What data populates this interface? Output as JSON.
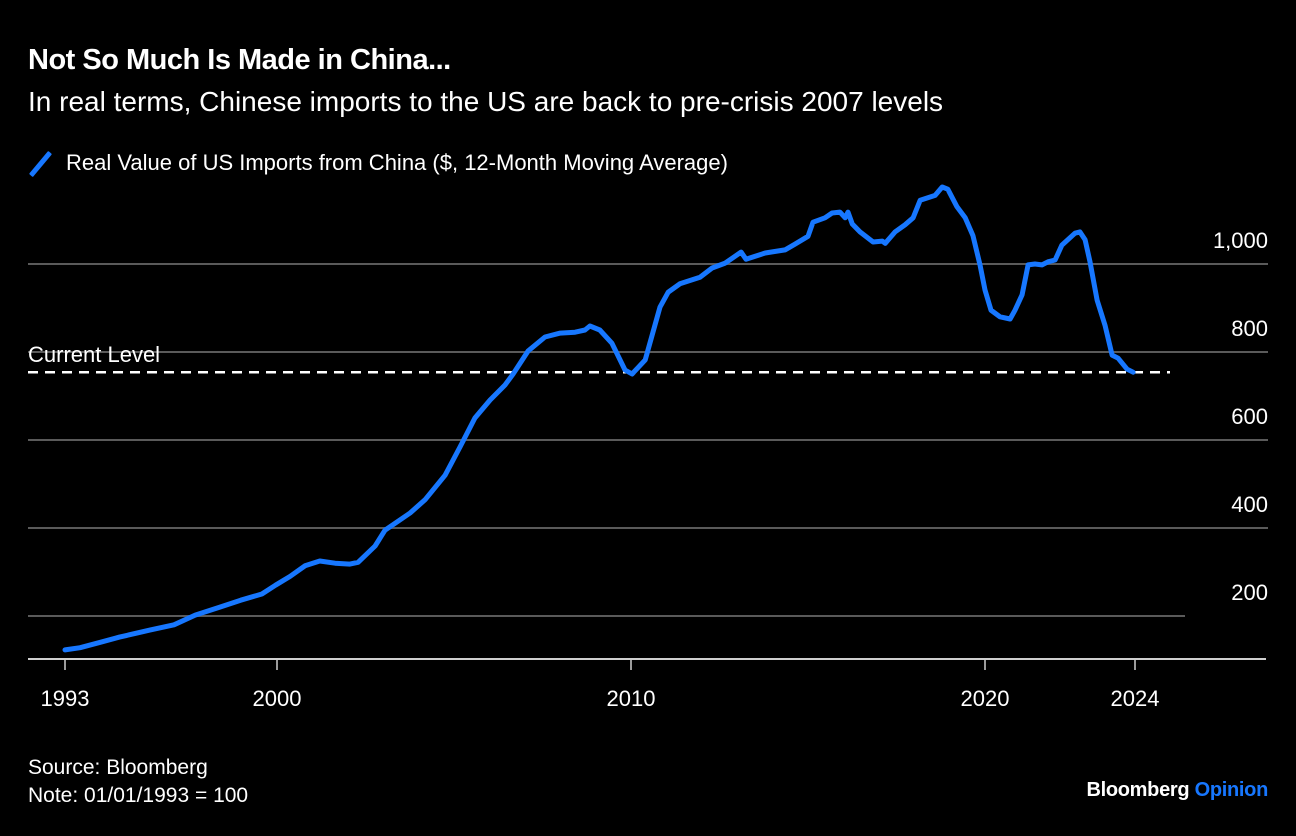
{
  "header": {
    "title": "Not So Much Is Made in China...",
    "subtitle": "In real terms, Chinese imports to the US are back to pre-crisis 2007 levels"
  },
  "legend": {
    "label": "Real Value of US Imports from China ($, 12-Month Moving Average)",
    "color": "#1777ff"
  },
  "footer": {
    "source": "Source: Bloomberg",
    "note": "Note: 01/01/1993 = 100"
  },
  "branding": {
    "name": "Bloomberg",
    "product": "Opinion",
    "product_color": "#1777ff"
  },
  "chart_data": {
    "type": "line",
    "title": "Not So Much Is Made in China...",
    "subtitle": "In real terms, Chinese imports to the US are back to pre-crisis 2007 levels",
    "xlabel": "",
    "ylabel": "",
    "x_ticks": [
      "1993",
      "2000",
      "2010",
      "2020",
      "2024"
    ],
    "y_ticks": [
      "200",
      "400",
      "600",
      "800",
      "1,000"
    ],
    "y_tick_values": [
      200,
      400,
      600,
      800,
      1000
    ],
    "ylim": [
      100,
      1200
    ],
    "grid": true,
    "y_axis_side": "right",
    "legend_position": "top-left",
    "annotation": {
      "label": "Current Level",
      "value": 754,
      "style": "dashed"
    },
    "series": [
      {
        "name": "Real Value of US Imports from China ($, 12-Month Moving Average)",
        "color": "#1777ff",
        "x": [
          1993.0,
          1993.5,
          1994.15,
          1994.8,
          1995.8,
          1996.6,
          1997.3,
          1998.1,
          1998.8,
          1999.5,
          1999.95,
          2000.37,
          2000.79,
          2001.21,
          2001.64,
          2002.06,
          2002.29,
          2002.77,
          2003.05,
          2003.76,
          2004.18,
          2004.75,
          2005.17,
          2005.59,
          2006.02,
          2006.44,
          2006.67,
          2007.09,
          2007.57,
          2008.0,
          2008.42,
          2008.7,
          2008.84,
          2009.12,
          2009.46,
          2009.83,
          2010.03,
          2010.4,
          2010.82,
          2011.05,
          2011.38,
          2011.95,
          2012.29,
          2012.66,
          2013.11,
          2013.25,
          2013.79,
          2014.35,
          2014.63,
          2015.0,
          2015.14,
          2015.48,
          2015.68,
          2015.9,
          2016.05,
          2016.13,
          2016.25,
          2016.47,
          2016.84,
          2017.1,
          2017.18,
          2017.46,
          2017.74,
          2017.97,
          2018.17,
          2018.59,
          2018.79,
          2018.95,
          2019.21,
          2019.44,
          2019.66,
          2019.86,
          2020.0,
          2020.16,
          2020.4,
          2020.67,
          2020.8,
          2020.99,
          2021.15,
          2021.33,
          2021.52,
          2021.68,
          2021.87,
          2022.05,
          2022.4,
          2022.53,
          2022.67,
          2022.8,
          2022.99,
          2023.2,
          2023.39,
          2023.55,
          2023.79,
          2023.95
        ],
        "values": [
          123,
          128,
          140,
          152,
          168,
          180,
          202,
          220,
          236,
          250,
          270,
          290,
          314,
          325,
          320,
          318,
          322,
          359,
          395,
          434,
          464,
          520,
          584,
          650,
          691,
          725,
          750,
          802,
          834,
          843,
          845,
          850,
          859,
          850,
          820,
          759,
          750,
          782,
          902,
          936,
          955,
          970,
          991,
          1002,
          1027,
          1011,
          1025,
          1032,
          1045,
          1063,
          1095,
          1105,
          1116,
          1118,
          1105,
          1118,
          1091,
          1073,
          1050,
          1052,
          1047,
          1073,
          1089,
          1105,
          1145,
          1156,
          1175,
          1170,
          1130,
          1105,
          1064,
          998,
          941,
          895,
          880,
          875,
          895,
          930,
          998,
          1000,
          998,
          1005,
          1009,
          1043,
          1070,
          1073,
          1055,
          1005,
          918,
          861,
          793,
          786,
          761,
          754
        ]
      }
    ]
  }
}
